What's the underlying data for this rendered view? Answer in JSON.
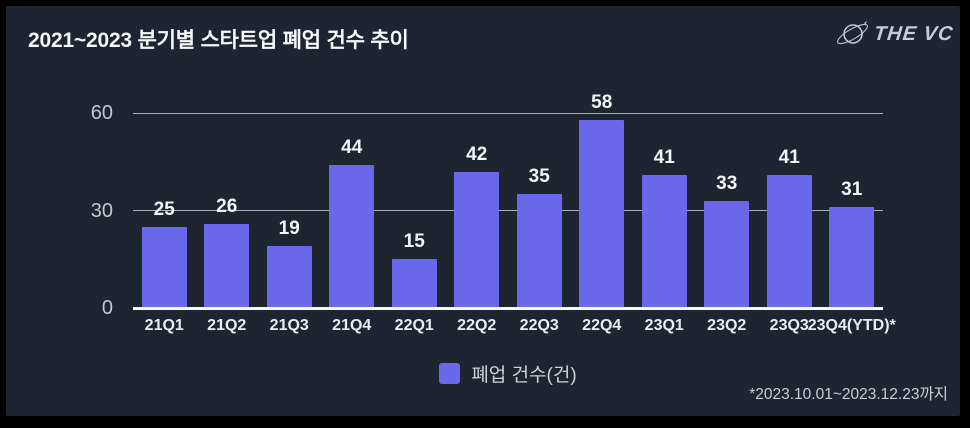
{
  "header": {
    "title": "2021~2023 분기별 스타트업 폐업 건수 추이",
    "brand": "THE VC"
  },
  "chart_data": {
    "type": "bar",
    "title": "2021~2023 분기별 스타트업 폐업 건수 추이",
    "categories": [
      "21Q1",
      "21Q2",
      "21Q3",
      "21Q4",
      "22Q1",
      "22Q2",
      "22Q3",
      "22Q4",
      "23Q1",
      "23Q2",
      "23Q3",
      "23Q4(YTD)*"
    ],
    "values": [
      25,
      26,
      19,
      44,
      15,
      42,
      35,
      58,
      41,
      33,
      41,
      31
    ],
    "xlabel": "",
    "ylabel": "",
    "ylim": [
      0,
      60
    ],
    "yticks": [
      0,
      30,
      60
    ],
    "grid": true,
    "legend": [
      "폐업 건수(건)"
    ],
    "legend_position": "bottom",
    "bar_color": "#6A68EB"
  },
  "legend": {
    "label": "폐업 건수(건)"
  },
  "footnote": "*2023.10.01~2023.12.23까지",
  "colors": {
    "background": "#000000",
    "panel": "#1E2530",
    "bar": "#6A68EB",
    "gridline": "#a9afb9",
    "baseline": "#f5f7fa",
    "title_text": "#f7f8fa",
    "tick_text": "#c2c7cf",
    "value_text": "#f4f6f8",
    "logo_text": "#c6ccd5"
  }
}
